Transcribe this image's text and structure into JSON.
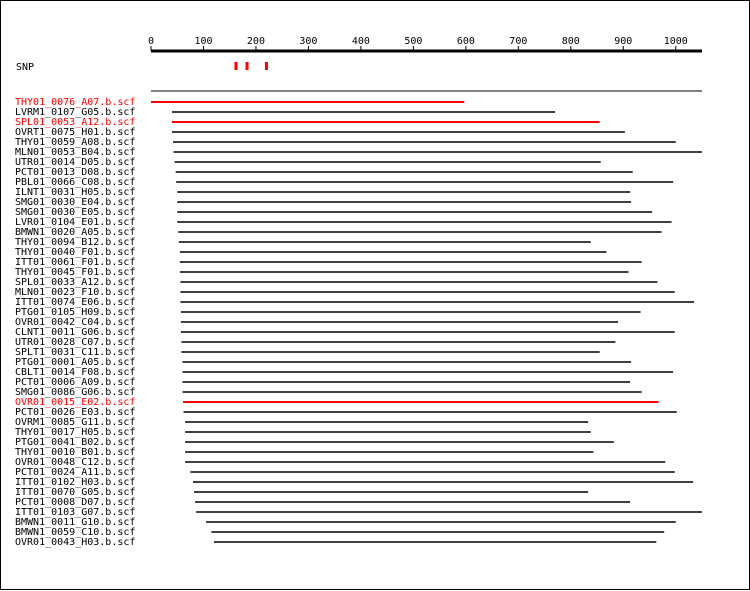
{
  "axis": {
    "min": 0,
    "max": 1050,
    "ticks": [
      0,
      100,
      200,
      300,
      400,
      500,
      600,
      700,
      800,
      900,
      1000
    ]
  },
  "snp": {
    "label": "SNP",
    "positions": [
      162,
      183,
      220
    ],
    "color": "#ff0000"
  },
  "colors": {
    "default": "#000000",
    "highlight": "#ff0000"
  },
  "reads": [
    {
      "name": "THY01_0076_A07.b.scf",
      "start": 0,
      "end": 597,
      "highlight": true
    },
    {
      "name": "LVRM1_0107_G05.b.scf",
      "start": 40,
      "end": 770,
      "highlight": false
    },
    {
      "name": "SPL01_0053_A12.b.scf",
      "start": 40,
      "end": 855,
      "highlight": true
    },
    {
      "name": "OVRT1_0075_H01.b.scf",
      "start": 40,
      "end": 903,
      "highlight": false
    },
    {
      "name": "THY01_0059_A08.b.scf",
      "start": 42,
      "end": 1000,
      "highlight": false
    },
    {
      "name": "MLN01_0053_B04.b.scf",
      "start": 43,
      "end": 1050,
      "highlight": false
    },
    {
      "name": "UTR01_0014_D05.b.scf",
      "start": 45,
      "end": 857,
      "highlight": false
    },
    {
      "name": "PCT01_0013_D08.b.scf",
      "start": 47,
      "end": 918,
      "highlight": false
    },
    {
      "name": "PBL01_0066_C08.b.scf",
      "start": 48,
      "end": 995,
      "highlight": false
    },
    {
      "name": "ILNT1_0031_H05.b.scf",
      "start": 50,
      "end": 913,
      "highlight": false
    },
    {
      "name": "SMG01_0030_E04.b.scf",
      "start": 50,
      "end": 915,
      "highlight": false
    },
    {
      "name": "SMG01_0030_E05.b.scf",
      "start": 50,
      "end": 955,
      "highlight": false
    },
    {
      "name": "LVR01_0104_E01.b.scf",
      "start": 50,
      "end": 992,
      "highlight": false
    },
    {
      "name": "BMWN1_0020_A05.b.scf",
      "start": 52,
      "end": 973,
      "highlight": false
    },
    {
      "name": "THY01_0094_B12.b.scf",
      "start": 53,
      "end": 838,
      "highlight": false
    },
    {
      "name": "THY01_0040_F01.b.scf",
      "start": 55,
      "end": 868,
      "highlight": false
    },
    {
      "name": "ITT01_0061_F01.b.scf",
      "start": 55,
      "end": 935,
      "highlight": false
    },
    {
      "name": "THY01_0045_F01.b.scf",
      "start": 55,
      "end": 910,
      "highlight": false
    },
    {
      "name": "SPL01_0033_A12.b.scf",
      "start": 56,
      "end": 965,
      "highlight": false
    },
    {
      "name": "MLN01_0023_F10.b.scf",
      "start": 56,
      "end": 998,
      "highlight": false
    },
    {
      "name": "ITT01_0074_E06.b.scf",
      "start": 56,
      "end": 1035,
      "highlight": false
    },
    {
      "name": "PTG01_0105_H09.b.scf",
      "start": 57,
      "end": 933,
      "highlight": false
    },
    {
      "name": "OVR01_0042_C04.b.scf",
      "start": 57,
      "end": 890,
      "highlight": false
    },
    {
      "name": "CLNT1_0011_G06.b.scf",
      "start": 57,
      "end": 998,
      "highlight": false
    },
    {
      "name": "UTR01_0028_C07.b.scf",
      "start": 58,
      "end": 885,
      "highlight": false
    },
    {
      "name": "SPLT1_0031_C11.b.scf",
      "start": 58,
      "end": 855,
      "highlight": false
    },
    {
      "name": "PTG01_0001_A05.b.scf",
      "start": 60,
      "end": 915,
      "highlight": false
    },
    {
      "name": "CBLT1_0014_F08.b.scf",
      "start": 60,
      "end": 995,
      "highlight": false
    },
    {
      "name": "PCT01_0006_A09.b.scf",
      "start": 60,
      "end": 913,
      "highlight": false
    },
    {
      "name": "SMG01_0086_G06.b.scf",
      "start": 60,
      "end": 935,
      "highlight": false
    },
    {
      "name": "OVR01_0015_E02.b.scf",
      "start": 61,
      "end": 967,
      "highlight": true
    },
    {
      "name": "PCT01_0026_E03.b.scf",
      "start": 62,
      "end": 1002,
      "highlight": false
    },
    {
      "name": "OVRM1_0085_G11.b.scf",
      "start": 65,
      "end": 833,
      "highlight": false
    },
    {
      "name": "THY01_0017_H05.b.scf",
      "start": 65,
      "end": 838,
      "highlight": false
    },
    {
      "name": "PTG01_0041_B02.b.scf",
      "start": 65,
      "end": 882,
      "highlight": false
    },
    {
      "name": "THY01_0010_B01.b.scf",
      "start": 65,
      "end": 843,
      "highlight": false
    },
    {
      "name": "OVR01_0048_C12.b.scf",
      "start": 65,
      "end": 980,
      "highlight": false
    },
    {
      "name": "PCT01_0024_A11.b.scf",
      "start": 75,
      "end": 998,
      "highlight": false
    },
    {
      "name": "ITT01_0102_H03.b.scf",
      "start": 80,
      "end": 1033,
      "highlight": false
    },
    {
      "name": "ITT01_0070_G05.b.scf",
      "start": 82,
      "end": 833,
      "highlight": false
    },
    {
      "name": "PCT01_0008_D07.b.scf",
      "start": 84,
      "end": 913,
      "highlight": false
    },
    {
      "name": "ITT01_0103_G07.b.scf",
      "start": 86,
      "end": 1050,
      "highlight": false
    },
    {
      "name": "BMWN1_0011_G10.b.scf",
      "start": 105,
      "end": 1000,
      "highlight": false
    },
    {
      "name": "BMWN1_0059_C10.b.scf",
      "start": 115,
      "end": 978,
      "highlight": false
    },
    {
      "name": "OVR01_0043_H03.b.scf",
      "start": 120,
      "end": 963,
      "highlight": false
    }
  ]
}
